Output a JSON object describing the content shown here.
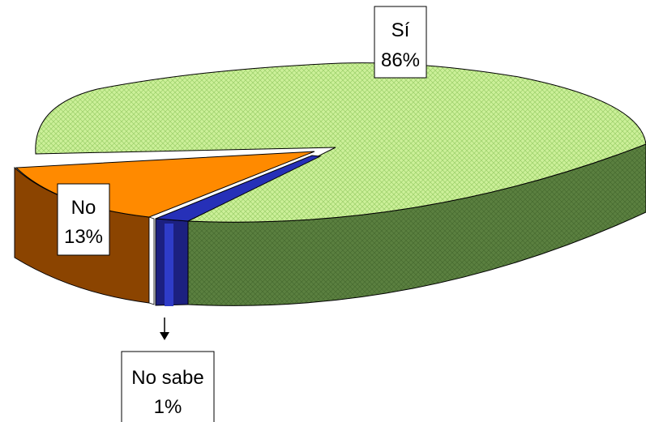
{
  "chart_data": {
    "type": "pie",
    "title": "",
    "slices": [
      {
        "label": "Sí",
        "value": 86,
        "value_label": "86%",
        "top_color": "#ccf099",
        "side_color": "#5b8040"
      },
      {
        "label": "No",
        "value": 13,
        "value_label": "13%",
        "top_color": "#ff8a00",
        "side_color": "#8b4400"
      },
      {
        "label": "No sabe",
        "value": 1,
        "value_label": "1%",
        "top_color": "#2630b8",
        "side_color": "#1c2080"
      }
    ]
  }
}
